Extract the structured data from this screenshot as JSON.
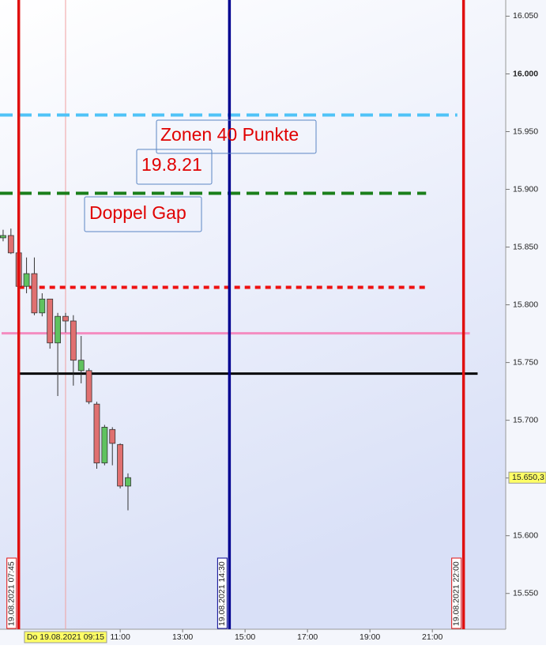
{
  "chart_data": {
    "type": "candlestick",
    "xlim": [
      7.15,
      23.35
    ],
    "ylim": [
      15519,
      16064
    ],
    "yticks": [
      {
        "value": 16050,
        "label": "16.050"
      },
      {
        "value": 16000,
        "label": "16.000"
      },
      {
        "value": 15950,
        "label": "15.950"
      },
      {
        "value": 15900,
        "label": "15.900"
      },
      {
        "value": 15850,
        "label": "15.850"
      },
      {
        "value": 15800,
        "label": "15.800"
      },
      {
        "value": 15750,
        "label": "15.750"
      },
      {
        "value": 15700,
        "label": "15.700"
      },
      {
        "value": 15650,
        "label": "15.650"
      },
      {
        "value": 15600,
        "label": "15.600"
      },
      {
        "value": 15550,
        "label": "15.550"
      }
    ],
    "xticks": [
      {
        "value": 11,
        "label": "11:00"
      },
      {
        "value": 13,
        "label": "13:00"
      },
      {
        "value": 15,
        "label": "15:00"
      },
      {
        "value": 17,
        "label": "17:00"
      },
      {
        "value": 19,
        "label": "19:00"
      },
      {
        "value": 21,
        "label": "21:00"
      }
    ],
    "up_color": "#5fc25f",
    "down_color": "#e07070",
    "x": [
      7.25,
      7.5,
      7.75,
      8.0,
      8.25,
      8.5,
      8.75,
      9.0,
      9.25,
      9.5,
      9.75,
      10.0,
      10.25,
      10.5,
      10.75,
      11.0,
      11.25
    ],
    "open": [
      15858,
      15860,
      15845,
      15816,
      15827,
      15793,
      15805,
      15767,
      15790,
      15786,
      15743,
      15743,
      15714,
      15663,
      15692,
      15679,
      15643
    ],
    "high": [
      15865,
      15866,
      15845,
      15841,
      15841,
      15810,
      15805,
      15793,
      15793,
      15791,
      15773,
      15745,
      15716,
      15696,
      15694,
      15680,
      15654
    ],
    "low": [
      15855,
      15844,
      15816,
      15810,
      15791,
      15790,
      15762,
      15721,
      15776,
      15730,
      15732,
      15714,
      15658,
      15661,
      15661,
      15641,
      15622
    ],
    "close": [
      15860,
      15845,
      15816,
      15827,
      15793,
      15805,
      15767,
      15790,
      15786,
      15752,
      15752,
      15716,
      15663,
      15694,
      15680,
      15643,
      15650.3
    ],
    "hlines": [
      {
        "value": 15964.4,
        "from": 7.15,
        "to": 21.8,
        "color": "#4fc3f7",
        "style": "dashed"
      },
      {
        "value": 15896.6,
        "from": 7.15,
        "to": 20.8,
        "color": "#1a7f1a",
        "style": "dashed"
      },
      {
        "value": 15815.1,
        "from": 7.75,
        "to": 20.85,
        "color": "#ee1111",
        "style": "dotted"
      },
      {
        "value": 15775.3,
        "from": 7.2,
        "to": 22.2,
        "color": "#f48cc0",
        "style": "solid"
      },
      {
        "value": 15740.4,
        "from": 7.75,
        "to": 22.45,
        "color": "#000000",
        "style": "solid"
      }
    ],
    "vlines": [
      {
        "x": 7.75,
        "label": "19.08.2021 07:45",
        "color": "#e01010"
      },
      {
        "x": 14.5,
        "label": "19.08.2021 14:30",
        "color": "#000090"
      },
      {
        "x": 22.0,
        "label": "19.08.2021 22:00",
        "color": "#e01010"
      }
    ],
    "crosshair": {
      "x": 9.25,
      "label": "Do 19.08.2021 09:15"
    },
    "last_price": {
      "value": 15650.3,
      "label": "15.650,3"
    },
    "annotations": [
      "Zonen 40 Punkte",
      "19.8.21",
      "Doppel Gap"
    ]
  }
}
